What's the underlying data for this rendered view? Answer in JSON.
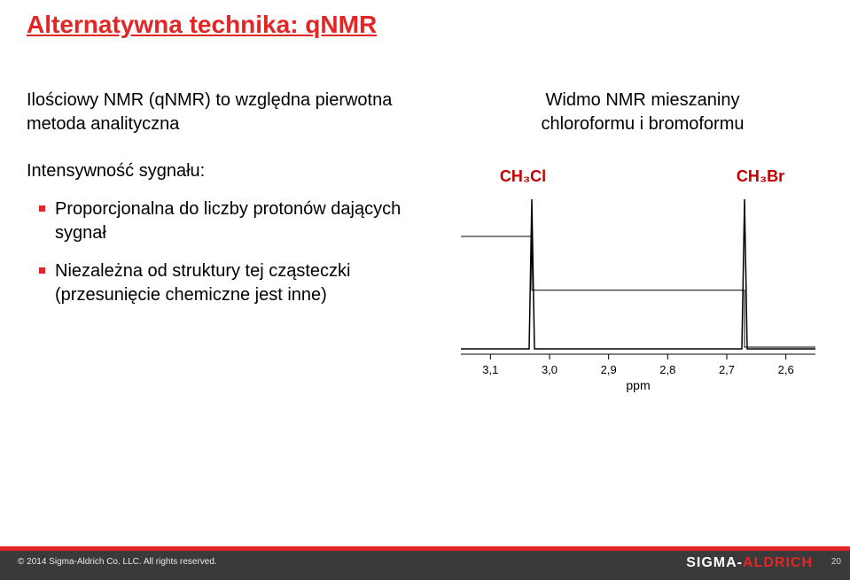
{
  "title": "Alternatywna technika: qNMR",
  "intro": "Ilościowy NMR (qNMR) to względna pierwotna metoda analityczna",
  "subhead": "Intensywność sygnału:",
  "bullets": [
    "Proporcjonalna do liczby protonów dających sygnał",
    "Niezależna od struktury tej cząsteczki (przesunięcie chemiczne jest inne)"
  ],
  "caption_line1": "Widmo NMR mieszaniny",
  "caption_line2": "chloroformu i bromoformu",
  "chart": {
    "label_left": "CH₃Cl",
    "label_right": "CH₃Br",
    "label_color": "#c00000",
    "peak1_x": 3.03,
    "peak2_x": 2.67,
    "integral_step1_x": 3.03,
    "integral_step2_x": 2.67,
    "x_min": 2.55,
    "x_max": 3.15,
    "x_ticks": [
      3.1,
      3.0,
      2.9,
      2.8,
      2.7,
      2.6
    ],
    "x_tick_labels": [
      "3,1",
      "3,0",
      "2,9",
      "2,8",
      "2,7",
      "2,6"
    ],
    "x_axis_label": "ppm",
    "plot_bg": "#ffffff",
    "axis_color": "#000000",
    "line_color": "#000000",
    "tick_fontsize": 13,
    "axis_label_fontsize": 14,
    "mol_label_fontsize": 18,
    "line_width": 1.5,
    "integral_line_width": 1
  },
  "footer": {
    "copyright": "© 2014 Sigma-Aldrich Co. LLC. All rights reserved.",
    "brand_prefix": "SIGMA-",
    "brand_suffix": "ALDRICH",
    "pagenum": "20"
  },
  "colors": {
    "title": "#e22626",
    "bullet": "#e22626",
    "text": "#000000",
    "footer_bar": "#e22626",
    "footer_bg": "#3a3a3a"
  }
}
